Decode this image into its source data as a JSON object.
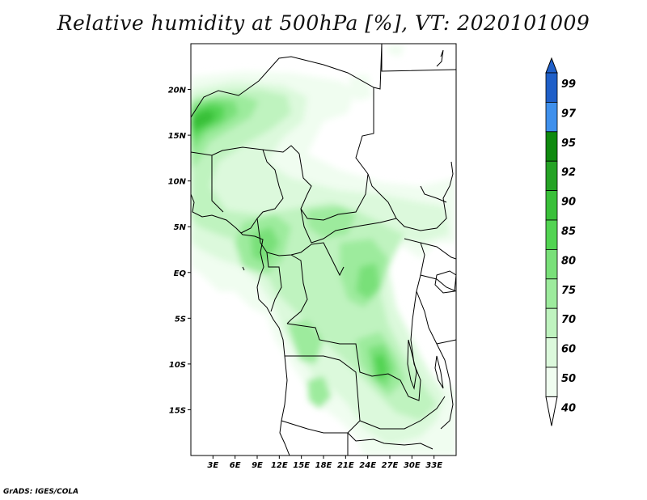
{
  "title": "Relative humidity at 500hPa [%], VT: 2020101009",
  "credit": "GrADS: IGES/COLA",
  "map": {
    "lon_range": [
      0,
      36
    ],
    "lat_range": [
      -20,
      25
    ],
    "lat_ticks": [
      "20N",
      "15N",
      "10N",
      "5N",
      "EQ",
      "5S",
      "10S",
      "15S"
    ],
    "lat_values": [
      20,
      15,
      10,
      5,
      0,
      -5,
      -10,
      -15
    ],
    "lon_ticks": [
      "3E",
      "6E",
      "9E",
      "12E",
      "15E",
      "18E",
      "21E",
      "24E",
      "27E",
      "30E",
      "33E"
    ],
    "lon_values": [
      3,
      6,
      9,
      12,
      15,
      18,
      21,
      24,
      27,
      30,
      33
    ]
  },
  "colorbar": {
    "levels": [
      "99",
      "97",
      "95",
      "92",
      "90",
      "85",
      "80",
      "75",
      "70",
      "60",
      "50",
      "40"
    ],
    "colors": [
      "#1f5fc8",
      "#2f76dc",
      "#3f90ec",
      "#0f8a0f",
      "#25a325",
      "#39c039",
      "#52d452",
      "#79e079",
      "#9deb9d",
      "#bff3bf",
      "#dcf9dc",
      "#f0fdf0"
    ]
  },
  "humidity_colors": {
    "40": "#f0fdf0",
    "50": "#dcf9dc",
    "60": "#bff3bf",
    "70": "#9deb9d",
    "75": "#79e079",
    "80": "#52d452",
    "85": "#39c039",
    "90": "#25a325"
  }
}
